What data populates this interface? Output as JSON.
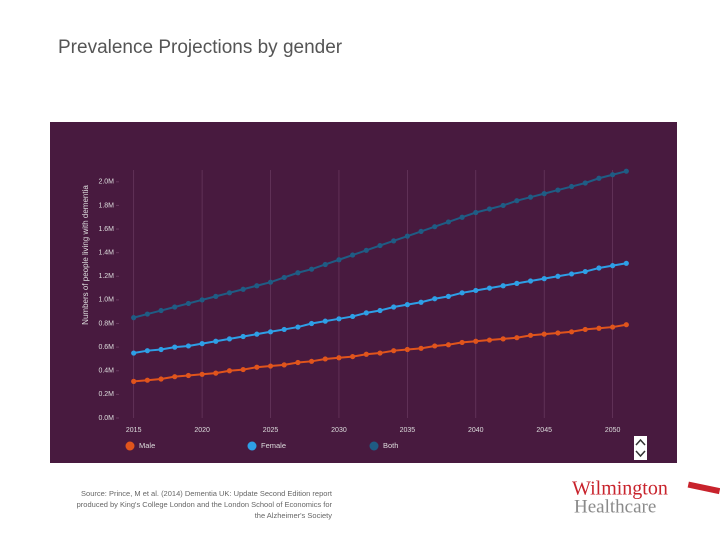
{
  "slide_title": "Prevalence Projections by gender",
  "chart_data": {
    "type": "line",
    "y_label": "Numbers of people living with dementia",
    "x": [
      2015,
      2016,
      2017,
      2018,
      2019,
      2020,
      2021,
      2022,
      2023,
      2024,
      2025,
      2026,
      2027,
      2028,
      2029,
      2030,
      2031,
      2032,
      2033,
      2034,
      2035,
      2036,
      2037,
      2038,
      2039,
      2040,
      2041,
      2042,
      2043,
      2044,
      2045,
      2046,
      2047,
      2048,
      2049,
      2050,
      2051
    ],
    "series": [
      {
        "name": "Male",
        "color": "#e0541c",
        "values": [
          0.31,
          0.32,
          0.33,
          0.35,
          0.36,
          0.37,
          0.38,
          0.4,
          0.41,
          0.43,
          0.44,
          0.45,
          0.47,
          0.48,
          0.5,
          0.51,
          0.52,
          0.54,
          0.55,
          0.57,
          0.58,
          0.59,
          0.61,
          0.62,
          0.64,
          0.65,
          0.66,
          0.67,
          0.68,
          0.7,
          0.71,
          0.72,
          0.73,
          0.75,
          0.76,
          0.77,
          0.79
        ]
      },
      {
        "name": "Female",
        "color": "#2e9fe6",
        "values": [
          0.55,
          0.57,
          0.58,
          0.6,
          0.61,
          0.63,
          0.65,
          0.67,
          0.69,
          0.71,
          0.73,
          0.75,
          0.77,
          0.8,
          0.82,
          0.84,
          0.86,
          0.89,
          0.91,
          0.94,
          0.96,
          0.98,
          1.01,
          1.03,
          1.06,
          1.08,
          1.1,
          1.12,
          1.14,
          1.16,
          1.18,
          1.2,
          1.22,
          1.24,
          1.27,
          1.29,
          1.31
        ]
      },
      {
        "name": "Both",
        "color": "#1f5c84",
        "values": [
          0.85,
          0.88,
          0.91,
          0.94,
          0.97,
          1.0,
          1.03,
          1.06,
          1.09,
          1.12,
          1.15,
          1.19,
          1.23,
          1.26,
          1.3,
          1.34,
          1.38,
          1.42,
          1.46,
          1.5,
          1.54,
          1.58,
          1.62,
          1.66,
          1.7,
          1.74,
          1.77,
          1.8,
          1.84,
          1.87,
          1.9,
          1.93,
          1.96,
          1.99,
          2.03,
          2.06,
          2.09
        ]
      }
    ],
    "xlim": [
      2014,
      2052
    ],
    "xticks": [
      2015,
      2020,
      2025,
      2030,
      2035,
      2040,
      2045,
      2050
    ],
    "ylim": [
      0,
      2.1
    ],
    "yticks": [
      {
        "value": 0,
        "label": "0.0M"
      },
      {
        "value": 0.2,
        "label": "0.2M"
      },
      {
        "value": 0.4,
        "label": "0.4M"
      },
      {
        "value": 0.6,
        "label": "0.6M"
      },
      {
        "value": 0.8,
        "label": "0.8M"
      },
      {
        "value": 1.0,
        "label": "1.0M"
      },
      {
        "value": 1.2,
        "label": "1.2M"
      },
      {
        "value": 1.4,
        "label": "1.4M"
      },
      {
        "value": 1.6,
        "label": "1.6M"
      },
      {
        "value": 1.8,
        "label": "1.8M"
      },
      {
        "value": 2.0,
        "label": "2.0M"
      }
    ],
    "grid": "x"
  },
  "source": [
    "Source: Prince, M et al. (2014) Dementia UK: Update Second Edition report",
    "produced by King's College London and the London School of Economics for",
    "the Alzheimer's Society"
  ],
  "logo": [
    "Wilmington",
    "Healthcare"
  ]
}
